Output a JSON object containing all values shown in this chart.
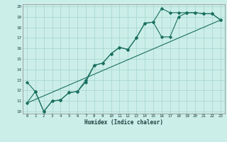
{
  "xlabel": "Humidex (Indice chaleur)",
  "bg_color": "#cceee8",
  "grid_color": "#aad8d2",
  "line_color": "#1a7060",
  "xlim": [
    0,
    23
  ],
  "ylim": [
    10,
    20
  ],
  "xticks": [
    0,
    1,
    2,
    3,
    4,
    5,
    6,
    7,
    8,
    9,
    10,
    11,
    12,
    13,
    14,
    15,
    16,
    17,
    18,
    19,
    20,
    21,
    22,
    23
  ],
  "yticks": [
    10,
    11,
    12,
    13,
    14,
    15,
    16,
    17,
    18,
    19,
    20
  ],
  "series1_x": [
    0,
    1,
    2,
    3,
    4,
    5,
    6,
    7,
    8,
    9,
    10,
    11,
    12,
    13,
    14,
    15,
    16,
    17,
    18,
    19,
    20,
    21,
    22,
    23
  ],
  "series1_y": [
    12.8,
    11.9,
    10.0,
    11.0,
    11.1,
    11.8,
    11.9,
    13.0,
    14.4,
    14.6,
    15.5,
    16.1,
    15.9,
    17.0,
    18.4,
    18.5,
    19.8,
    19.4,
    19.4,
    19.4,
    19.4,
    19.3,
    19.3,
    18.7
  ],
  "series2_x": [
    0,
    1,
    2,
    3,
    4,
    5,
    6,
    7,
    8,
    9,
    10,
    11,
    12,
    13,
    14,
    15,
    16,
    17,
    18,
    19,
    20,
    21,
    22,
    23
  ],
  "series2_y": [
    10.8,
    11.9,
    10.0,
    11.0,
    11.1,
    11.8,
    11.9,
    12.8,
    14.4,
    14.6,
    15.5,
    16.1,
    15.9,
    17.0,
    18.4,
    18.5,
    17.1,
    17.1,
    19.0,
    19.4,
    19.4,
    19.3,
    19.3,
    18.7
  ],
  "series3_x": [
    0,
    23
  ],
  "series3_y": [
    10.8,
    18.7
  ]
}
